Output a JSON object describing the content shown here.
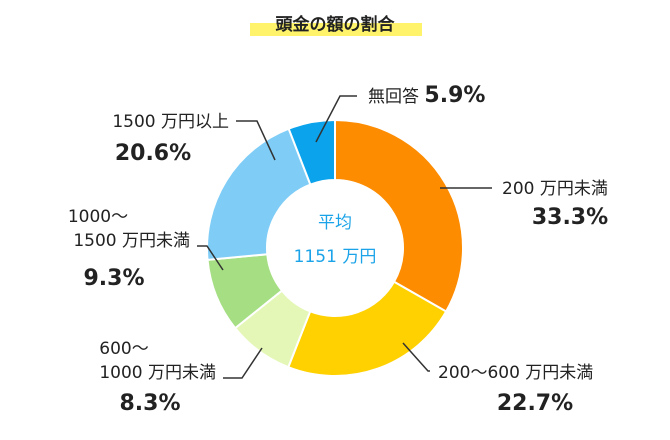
{
  "chart_data": {
    "type": "pie",
    "title": "頭金の額の割合",
    "center_label": [
      "平均",
      "1151 万円"
    ],
    "slices": [
      {
        "label": [
          "200 万円未満"
        ],
        "value": 33.3,
        "pct_text": "33.3%",
        "color": "#fd8c00"
      },
      {
        "label": [
          "200～600 万円未満"
        ],
        "value": 22.7,
        "pct_text": "22.7%",
        "color": "#ffd100"
      },
      {
        "label": [
          "600～",
          "1000 万円未満"
        ],
        "value": 8.3,
        "pct_text": "8.3%",
        "color": "#e4f7b6"
      },
      {
        "label": [
          "1000～",
          "1500 万円未満"
        ],
        "value": 9.3,
        "pct_text": "9.3%",
        "color": "#a6de84"
      },
      {
        "label": [
          "1500 万円以上"
        ],
        "value": 20.6,
        "pct_text": "20.6%",
        "color": "#7fcdf7"
      },
      {
        "label": [
          "無回答"
        ],
        "value": 5.9,
        "pct_text": "5.9%",
        "color": "#0aa3ec"
      }
    ],
    "title_highlight_color": "#fff36b",
    "center_text_color": "#1aa3e8"
  }
}
